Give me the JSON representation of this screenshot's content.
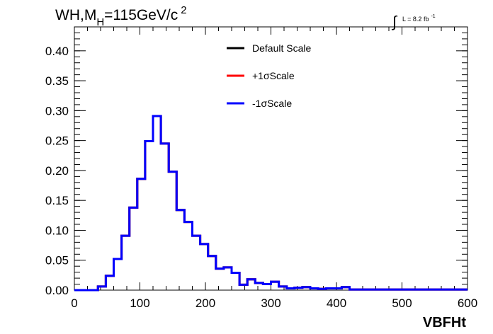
{
  "chart_data": {
    "type": "line",
    "title_main": "WH,M",
    "title_sub": "H",
    "title_rest": "=115GeV/c",
    "title_sup": "2",
    "lumi_label": "L = 8.2 fb",
    "lumi_sup": "-1",
    "xlabel": "VBFHt",
    "xlim": [
      0,
      600
    ],
    "ylim": [
      0,
      0.44
    ],
    "xticks": [
      0,
      100,
      200,
      300,
      400,
      500,
      600
    ],
    "xtick_labels": [
      "0",
      "100",
      "200",
      "300",
      "400",
      "500",
      "600"
    ],
    "yticks": [
      0,
      0.05,
      0.1,
      0.15,
      0.2,
      0.25,
      0.3,
      0.35,
      0.4
    ],
    "ytick_labels": [
      "0.00",
      "0.05",
      "0.10",
      "0.15",
      "0.20",
      "0.25",
      "0.30",
      "0.35",
      "0.40"
    ],
    "bin_width": 12,
    "bin_edges_start": 0,
    "legend_placement": "top-center",
    "series": [
      {
        "name": "Default Scale",
        "color": "#000000",
        "values": [
          0,
          0,
          0,
          0.006,
          0.024,
          0.052,
          0.091,
          0.138,
          0.186,
          0.249,
          0.291,
          0.245,
          0.198,
          0.134,
          0.114,
          0.091,
          0.077,
          0.057,
          0.036,
          0.038,
          0.029,
          0.009,
          0.018,
          0.012,
          0.01,
          0.014,
          0.006,
          0.003,
          0.004,
          0.005,
          0.003,
          0.002,
          0.003,
          0.003,
          0.005,
          0.001,
          0.001,
          0.001,
          0.001,
          0.001,
          0.001,
          0.001,
          0.001,
          0.001,
          0.001,
          0.001,
          0.001,
          0.001,
          0.001,
          0.001
        ]
      },
      {
        "name": "+1σScale",
        "color": "#ff0000",
        "values": [
          0,
          0,
          0,
          0.006,
          0.024,
          0.052,
          0.091,
          0.138,
          0.186,
          0.249,
          0.291,
          0.245,
          0.198,
          0.134,
          0.114,
          0.091,
          0.077,
          0.057,
          0.036,
          0.038,
          0.029,
          0.009,
          0.018,
          0.012,
          0.01,
          0.014,
          0.006,
          0.003,
          0.004,
          0.005,
          0.003,
          0.002,
          0.003,
          0.003,
          0.005,
          0.001,
          0.001,
          0.001,
          0.001,
          0.001,
          0.001,
          0.001,
          0.001,
          0.001,
          0.001,
          0.001,
          0.001,
          0.001,
          0.001,
          0.001
        ]
      },
      {
        "name": "-1σScale",
        "color": "#0000ff",
        "values": [
          0,
          0,
          0,
          0.006,
          0.024,
          0.052,
          0.091,
          0.138,
          0.186,
          0.249,
          0.291,
          0.245,
          0.198,
          0.134,
          0.114,
          0.091,
          0.077,
          0.057,
          0.036,
          0.038,
          0.029,
          0.009,
          0.018,
          0.012,
          0.01,
          0.014,
          0.006,
          0.003,
          0.004,
          0.005,
          0.003,
          0.002,
          0.003,
          0.003,
          0.005,
          0.001,
          0.001,
          0.001,
          0.001,
          0.001,
          0.001,
          0.001,
          0.001,
          0.001,
          0.001,
          0.001,
          0.001,
          0.001,
          0.001,
          0.001
        ]
      }
    ]
  }
}
